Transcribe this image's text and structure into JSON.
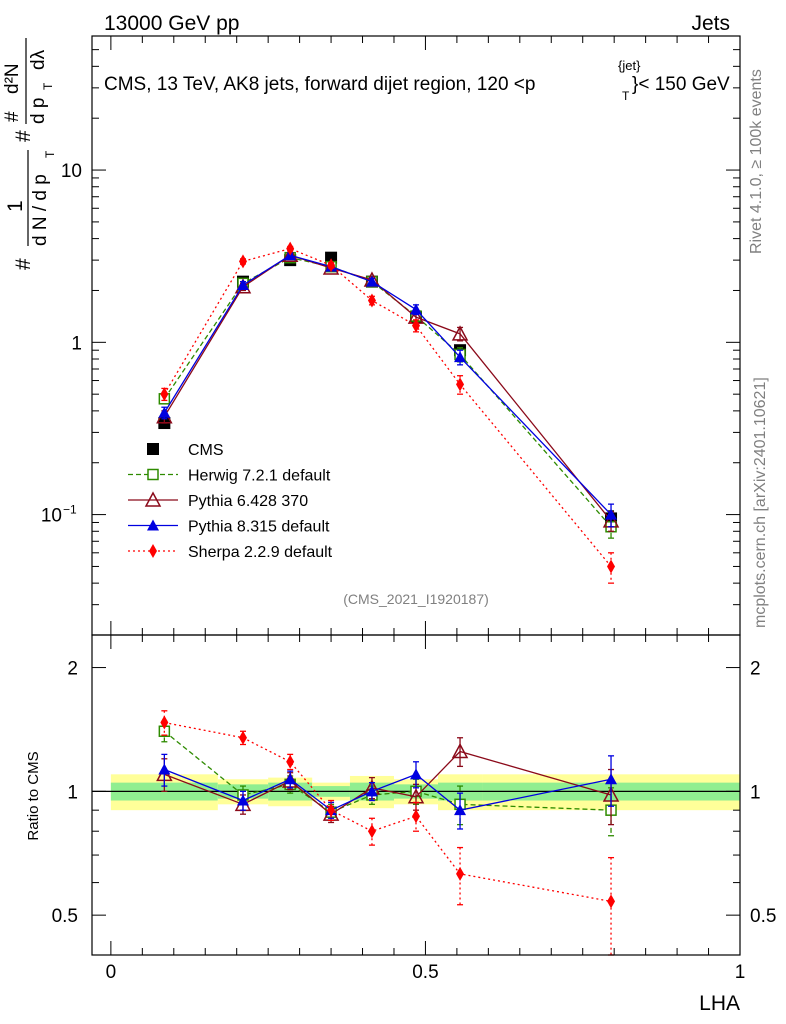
{
  "header": {
    "left": "13000 GeV pp",
    "right": "Jets"
  },
  "side_labels": {
    "rivet": "Rivet 4.1.0, ≥ 100k events",
    "arxiv": "mcplots.cern.ch [arXiv:2401.10621]"
  },
  "chart_data": [
    {
      "type": "line",
      "title": "CMS, 13 TeV, AK8 jets, forward dijet region, 120 <p",
      "title_sup": "{jet}",
      "title_sub": "T",
      "title_tail": "}< 150 GeV",
      "watermark": "(CMS_2021_I1920187)",
      "ylabel": {
        "hash1": "#",
        "one": "1",
        "dN_dpT": "d N / d p",
        "sub_T": "T",
        "hash2": "#",
        "d2N": "d²N",
        "hash3": "#",
        "dpT": "d p",
        "sub_T2": "T",
        "dlambda": "dλ"
      },
      "yscale": "log",
      "ylim": [
        0.02,
        60
      ],
      "xlim": [
        -0.03,
        1.0
      ],
      "ytick_labels": [
        {
          "v": 10,
          "label": "10"
        },
        {
          "v": 1,
          "label": "1"
        },
        {
          "v": 0.1,
          "label": "10",
          "sup": "−1"
        }
      ],
      "x": [
        0.085,
        0.21,
        0.285,
        0.35,
        0.415,
        0.485,
        0.555,
        0.795
      ],
      "series": [
        {
          "name": "CMS",
          "color": "#000000",
          "marker": "square-filled",
          "dash": "none",
          "values": [
            0.34,
            2.25,
            3.0,
            3.1,
            2.25,
            1.4,
            0.9,
            0.095
          ],
          "errors": [
            0.02,
            0.1,
            0.1,
            0.1,
            0.1,
            0.08,
            0.06,
            0.01
          ]
        },
        {
          "name": "Herwig 7.2.1 default",
          "color": "#2e8b00",
          "marker": "square-open",
          "dash": "5,3",
          "values": [
            0.47,
            2.2,
            3.1,
            2.75,
            2.25,
            1.42,
            0.85,
            0.085
          ],
          "errors": [
            0.03,
            0.1,
            0.1,
            0.1,
            0.1,
            0.1,
            0.08,
            0.012
          ]
        },
        {
          "name": "Pythia 6.428 370",
          "color": "#8b0a1a",
          "marker": "triangle-open",
          "dash": "none",
          "values": [
            0.37,
            2.1,
            3.2,
            2.7,
            2.3,
            1.4,
            1.12,
            0.092
          ],
          "errors": [
            0.03,
            0.1,
            0.1,
            0.1,
            0.1,
            0.1,
            0.1,
            0.012
          ]
        },
        {
          "name": "Pythia 8.315 default",
          "color": "#0000e0",
          "marker": "triangle-filled",
          "dash": "none",
          "values": [
            0.39,
            2.15,
            3.2,
            2.75,
            2.25,
            1.55,
            0.82,
            0.1
          ],
          "errors": [
            0.03,
            0.1,
            0.1,
            0.1,
            0.1,
            0.1,
            0.08,
            0.015
          ]
        },
        {
          "name": "Sherpa 2.2.9 default",
          "color": "#ff0000",
          "marker": "diamond-filled",
          "dash": "2,3",
          "values": [
            0.5,
            2.95,
            3.5,
            2.8,
            1.75,
            1.25,
            0.57,
            0.05
          ],
          "errors": [
            0.04,
            0.1,
            0.1,
            0.1,
            0.1,
            0.1,
            0.07,
            0.01
          ]
        }
      ]
    },
    {
      "type": "line",
      "title": "",
      "xlabel": "LHA",
      "ylabel": "Ratio to CMS",
      "yscale": "log",
      "ylim": [
        0.4,
        2.4
      ],
      "xlim": [
        -0.03,
        1.0
      ],
      "xtick_labels": [
        {
          "v": 0,
          "label": "0"
        },
        {
          "v": 0.5,
          "label": "0.5"
        },
        {
          "v": 1,
          "label": "1"
        }
      ],
      "ytick_labels": [
        {
          "v": 2,
          "label": "2"
        },
        {
          "v": 1,
          "label": "1"
        },
        {
          "v": 0.5,
          "label": "0.5"
        }
      ],
      "bands": {
        "edges": [
          0.0,
          0.17,
          0.25,
          0.32,
          0.38,
          0.45,
          0.52,
          0.59,
          1.0
        ],
        "yellow": [
          0.1,
          0.07,
          0.08,
          0.05,
          0.09,
          0.07,
          0.1,
          0.1
        ],
        "green": [
          0.05,
          0.04,
          0.05,
          0.03,
          0.05,
          0.04,
          0.05,
          0.05
        ],
        "yellow_color": "#ffff99",
        "green_color": "#90ee90"
      },
      "x": [
        0.085,
        0.21,
        0.285,
        0.35,
        0.415,
        0.485,
        0.555,
        0.795
      ],
      "series": [
        {
          "name": "Herwig 7.2.1 default",
          "color": "#2e8b00",
          "marker": "square-open",
          "dash": "5,3",
          "values": [
            1.4,
            0.98,
            1.04,
            0.89,
            0.98,
            1.0,
            0.93,
            0.9
          ],
          "errors": [
            0.08,
            0.05,
            0.05,
            0.04,
            0.05,
            0.07,
            0.1,
            0.12
          ]
        },
        {
          "name": "Pythia 6.428 370",
          "color": "#8b0a1a",
          "marker": "triangle-open",
          "dash": "none",
          "values": [
            1.1,
            0.93,
            1.06,
            0.88,
            1.02,
            0.97,
            1.25,
            0.98
          ],
          "errors": [
            0.1,
            0.05,
            0.05,
            0.04,
            0.06,
            0.07,
            0.1,
            0.15
          ]
        },
        {
          "name": "Pythia 8.315 default",
          "color": "#0000e0",
          "marker": "triangle-filled",
          "dash": "none",
          "values": [
            1.13,
            0.95,
            1.07,
            0.9,
            1.0,
            1.1,
            0.9,
            1.07
          ],
          "errors": [
            0.1,
            0.05,
            0.05,
            0.04,
            0.05,
            0.08,
            0.09,
            0.15
          ]
        },
        {
          "name": "Sherpa 2.2.9 default",
          "color": "#ff0000",
          "marker": "diamond-filled",
          "dash": "2,3",
          "values": [
            1.47,
            1.35,
            1.18,
            0.9,
            0.8,
            0.87,
            0.63,
            0.54
          ],
          "errors": [
            0.1,
            0.05,
            0.05,
            0.05,
            0.06,
            0.07,
            0.1,
            0.15
          ]
        }
      ]
    }
  ]
}
